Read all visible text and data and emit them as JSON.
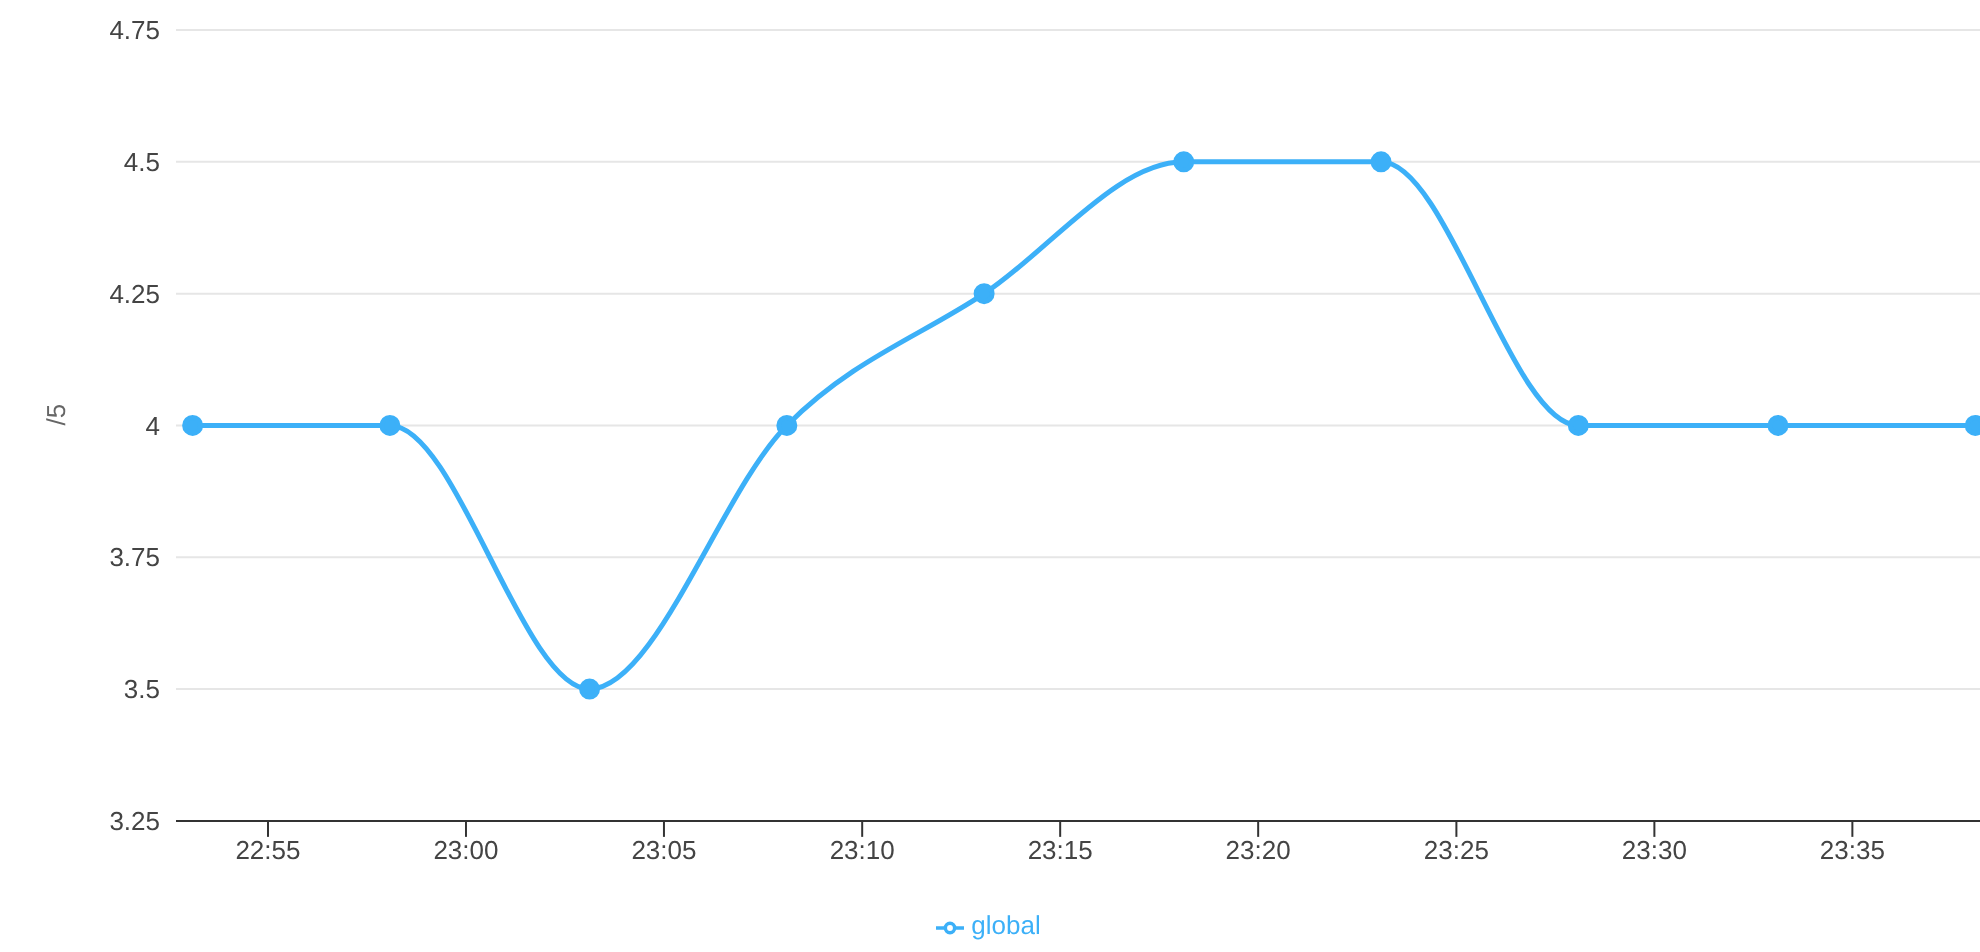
{
  "chart_data": {
    "type": "line",
    "ylabel": "/5",
    "x": [
      22.885,
      22.968,
      23.052,
      23.135,
      23.218,
      23.302,
      23.385,
      23.468,
      23.552,
      23.635
    ],
    "series": [
      {
        "name": "global",
        "color": "#3cb0f8",
        "values": [
          4,
          4,
          3.5,
          4,
          4.25,
          4.5,
          4.5,
          4,
          4,
          4
        ]
      }
    ],
    "xlim": [
      22.878,
      23.637
    ],
    "xticks": [
      {
        "value": 22.9167,
        "label": "22:55"
      },
      {
        "value": 23,
        "label": "23:00"
      },
      {
        "value": 23.0833,
        "label": "23:05"
      },
      {
        "value": 23.1667,
        "label": "23:10"
      },
      {
        "value": 23.25,
        "label": "23:15"
      },
      {
        "value": 23.3333,
        "label": "23:20"
      },
      {
        "value": 23.4167,
        "label": "23:25"
      },
      {
        "value": 23.5,
        "label": "23:30"
      },
      {
        "value": 23.5833,
        "label": "23:35"
      }
    ],
    "ylim": [
      3.25,
      4.75
    ],
    "yticks": [
      3.25,
      3.5,
      3.75,
      4,
      4.25,
      4.5,
      4.75
    ],
    "grid": "y",
    "legend": "bottom",
    "marker": "circle",
    "line_style": "solid"
  }
}
